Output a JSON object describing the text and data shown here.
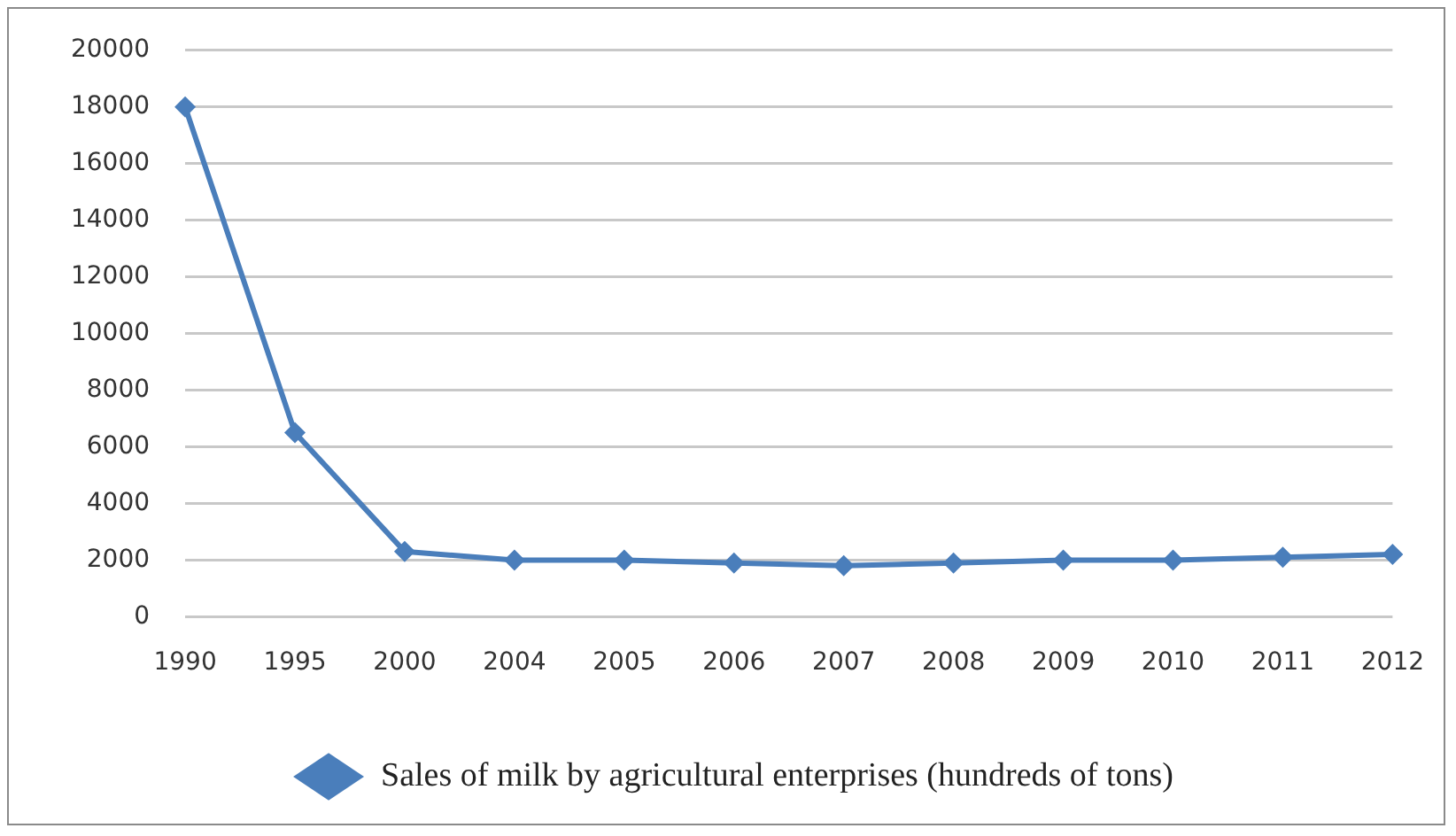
{
  "chart_data": {
    "type": "line",
    "categories": [
      "1990",
      "1995",
      "2000",
      "2004",
      "2005",
      "2006",
      "2007",
      "2008",
      "2009",
      "2010",
      "2011",
      "2012"
    ],
    "series": [
      {
        "name": "Sales of milk by agricultural enterprises (hundreds of tons)",
        "color": "#4a7ebb",
        "values": [
          18000,
          6500,
          2300,
          2000,
          2000,
          1900,
          1800,
          1900,
          2000,
          2000,
          2100,
          2200
        ]
      }
    ],
    "ylim": [
      0,
      20000
    ],
    "yticks": [
      0,
      2000,
      4000,
      6000,
      8000,
      10000,
      12000,
      14000,
      16000,
      18000,
      20000
    ],
    "grid": "y",
    "legend": "bottom",
    "marker": "diamond",
    "line_style": "solid"
  }
}
